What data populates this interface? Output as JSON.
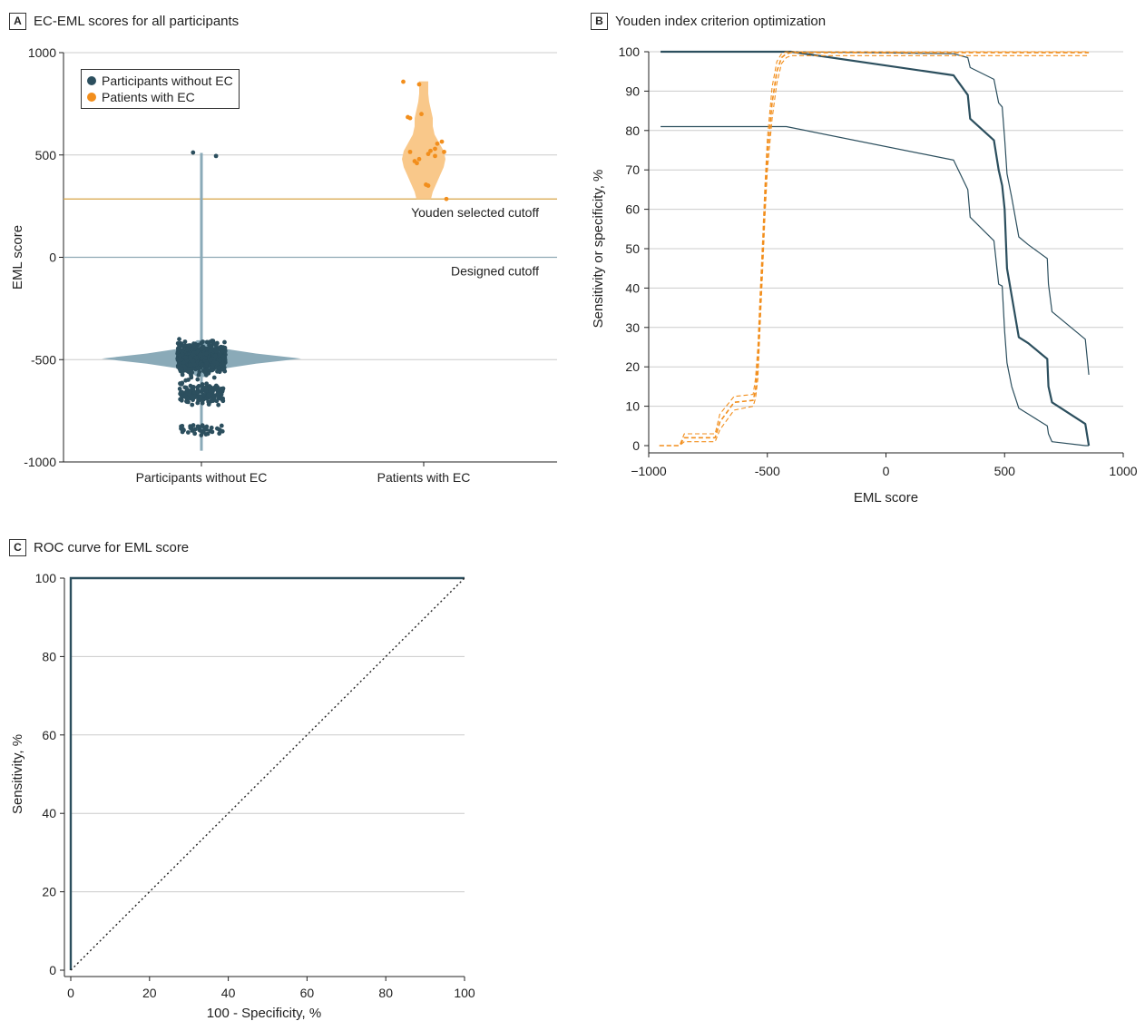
{
  "colors": {
    "dark": "#2c4f5e",
    "violin_dark": "#8aaab8",
    "orange": "#f28e1c",
    "violin_orange": "#f9c88a",
    "youden_line": "#d7a447",
    "designed_line": "#8fa9b4",
    "grid": "#cccccc"
  },
  "chart_data": [
    {
      "id": "A",
      "type": "scatter",
      "letter": "A",
      "title": "EC-EML scores for all participants",
      "xlabel": "",
      "ylabel": "EML score",
      "categories": [
        "Participants without EC",
        "Patients with EC"
      ],
      "ylim": [
        -1000,
        1000
      ],
      "yticks": [
        1000,
        500,
        0,
        -500,
        -1000
      ],
      "yticklabels": [
        "1000",
        "500",
        "0",
        "-500",
        "-1000"
      ],
      "legend": [
        "Participants without EC",
        "Patients with EC"
      ],
      "legend_position": "top-left",
      "reference_lines": [
        {
          "label": "Youden selected cutoff",
          "value": 285
        },
        {
          "label": "Designed cutoff",
          "value": 0
        }
      ],
      "series": [
        {
          "name": "Participants without EC",
          "category": "Participants without EC",
          "range": [
            -945,
            510
          ],
          "outliers": [
            [
              -0.04,
              512
            ],
            [
              0.07,
              495
            ]
          ],
          "clusters": [
            {
              "center": -495,
              "spread": 70,
              "count": 700,
              "xwidth": 0.22
            },
            {
              "center": -665,
              "spread": 45,
              "count": 160,
              "xwidth": 0.2
            },
            {
              "center": -840,
              "spread": 25,
              "count": 45,
              "xwidth": 0.2
            }
          ]
        },
        {
          "name": "Patients with EC",
          "category": "Patients with EC",
          "range": [
            285,
            860
          ],
          "points": [
            [
              -0.09,
              858
            ],
            [
              -0.02,
              845
            ],
            [
              -0.07,
              685
            ],
            [
              -0.06,
              680
            ],
            [
              -0.01,
              700
            ],
            [
              -0.06,
              515
            ],
            [
              -0.04,
              470
            ],
            [
              -0.02,
              480
            ],
            [
              0.02,
              505
            ],
            [
              0.03,
              520
            ],
            [
              0.05,
              530
            ],
            [
              0.06,
              555
            ],
            [
              0.08,
              565
            ],
            [
              0.05,
              495
            ],
            [
              0.09,
              515
            ],
            [
              0.01,
              355
            ],
            [
              0.02,
              350
            ],
            [
              0.1,
              285
            ],
            [
              -0.03,
              460
            ]
          ]
        }
      ]
    },
    {
      "id": "B",
      "type": "line",
      "letter": "B",
      "title": "Youden index criterion optimization",
      "xlabel": "EML score",
      "ylabel": "Sensitivity or specificity, %",
      "xlim": [
        -1000,
        1000
      ],
      "ylim": [
        0,
        100
      ],
      "xticks": [
        -1000,
        -500,
        0,
        500,
        1000
      ],
      "xticklabels": [
        "−1000",
        "-500",
        "0",
        "500",
        "1000"
      ],
      "yticks": [
        0,
        10,
        20,
        30,
        40,
        50,
        60,
        70,
        80,
        90,
        100
      ],
      "series": [
        {
          "role": "main",
          "color": "dark",
          "x": [
            -950,
            -400,
            285,
            345,
            355,
            455,
            475,
            490,
            500,
            510,
            530,
            560,
            600,
            680,
            685,
            700,
            840,
            855
          ],
          "y": [
            100,
            100,
            94,
            89,
            83,
            77.5,
            70,
            66,
            60,
            45,
            38,
            27.5,
            26,
            22,
            15,
            11,
            5.5,
            0
          ]
        },
        {
          "role": "upper",
          "color": "dark",
          "x": [
            -950,
            -400,
            285,
            345,
            355,
            455,
            475,
            490,
            500,
            510,
            530,
            560,
            600,
            680,
            685,
            700,
            840,
            855
          ],
          "y": [
            100,
            100,
            99.5,
            98.5,
            96,
            93,
            87,
            86,
            78,
            69,
            63,
            53,
            51,
            47.5,
            41,
            34,
            27,
            18
          ]
        },
        {
          "role": "lower",
          "color": "dark",
          "x": [
            -950,
            -420,
            285,
            345,
            355,
            455,
            475,
            490,
            500,
            510,
            530,
            560,
            600,
            680,
            685,
            700,
            840,
            855
          ],
          "y": [
            81,
            81,
            72.5,
            65,
            58,
            52,
            41,
            40.5,
            29,
            21,
            15,
            9.5,
            8,
            5,
            3,
            1,
            0,
            0
          ]
        },
        {
          "role": "main",
          "color": "orange",
          "dashed": true,
          "x": [
            -955,
            -870,
            -850,
            -720,
            -700,
            -640,
            -560,
            -550,
            -540,
            -530,
            -520,
            -510,
            -500,
            -480,
            -460,
            -440,
            -420,
            -400,
            855
          ],
          "y": [
            0,
            0,
            2,
            2,
            6,
            11,
            11.5,
            14,
            21,
            35,
            48,
            62,
            74,
            87,
            95,
            98.5,
            99.5,
            99.8,
            99.8
          ]
        },
        {
          "role": "upper",
          "color": "orange",
          "dashed": true,
          "x": [
            -955,
            -870,
            -850,
            -720,
            -700,
            -640,
            -560,
            -550,
            -540,
            -530,
            -520,
            -510,
            -500,
            -480,
            -460,
            -440,
            -420,
            -400,
            855
          ],
          "y": [
            0,
            0,
            3,
            3,
            8,
            12.5,
            13,
            17,
            25,
            39,
            52,
            66,
            78,
            91,
            97.5,
            99.5,
            100,
            100,
            100
          ]
        },
        {
          "role": "lower",
          "color": "orange",
          "dashed": true,
          "x": [
            -955,
            -870,
            -850,
            -720,
            -700,
            -640,
            -560,
            -550,
            -540,
            -530,
            -520,
            -510,
            -500,
            -480,
            -460,
            -440,
            -420,
            -400,
            855
          ],
          "y": [
            0,
            0,
            1,
            1,
            4,
            9,
            10,
            12,
            17,
            31,
            44,
            58,
            70,
            83,
            92,
            97,
            98.5,
            99,
            99
          ]
        }
      ]
    },
    {
      "id": "C",
      "type": "line",
      "letter": "C",
      "title": "ROC curve for EML score",
      "xlabel": "100 - Specificity, %",
      "ylabel": "Sensitivity, %",
      "xlim": [
        0,
        100
      ],
      "ylim": [
        0,
        100
      ],
      "xticks": [
        0,
        20,
        40,
        60,
        80,
        100
      ],
      "yticks": [
        0,
        20,
        40,
        60,
        80,
        100
      ],
      "series": [
        {
          "role": "roc",
          "color": "dark",
          "x": [
            0,
            0,
            100
          ],
          "y": [
            0,
            100,
            100
          ]
        },
        {
          "role": "reference",
          "color": "black",
          "dotted": true,
          "x": [
            0,
            100
          ],
          "y": [
            0,
            100
          ]
        }
      ]
    }
  ]
}
